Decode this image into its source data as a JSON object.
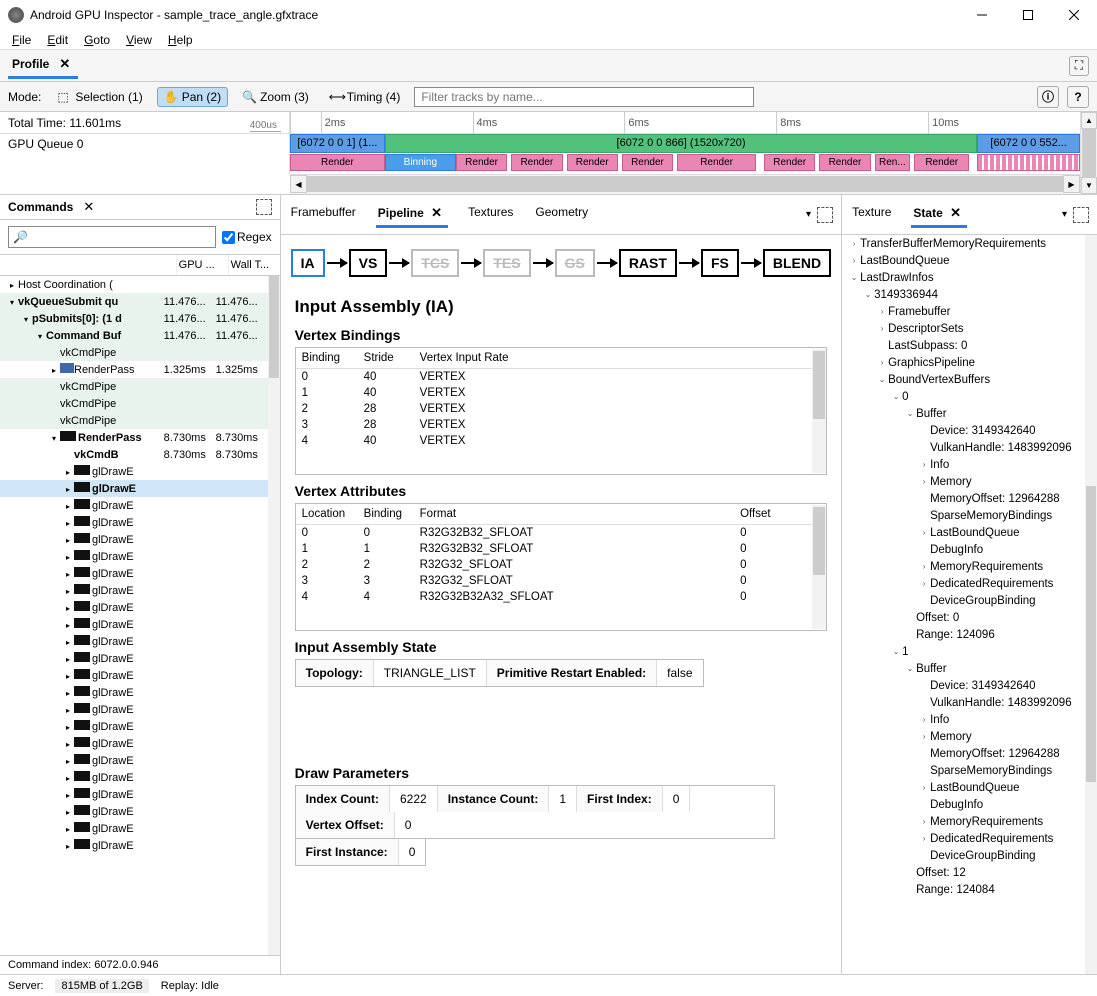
{
  "window": {
    "title": "Android GPU Inspector - sample_trace_angle.gfxtrace"
  },
  "menubar": {
    "file": "File",
    "edit": "Edit",
    "goto": "Goto",
    "view": "View",
    "help": "Help"
  },
  "profile_tab": "Profile",
  "toolbar": {
    "mode_label": "Mode:",
    "selection": "Selection (1)",
    "pan": "Pan (2)",
    "zoom": "Zoom (3)",
    "timing": "Timing (4)",
    "filter_placeholder": "Filter tracks by name...",
    "info_icon": "ⓘ",
    "help_icon": "?"
  },
  "timeline": {
    "total_label": "Total Time: 11.601ms",
    "zoom_label": "400us",
    "ticks": [
      "",
      "2ms",
      "4ms",
      "6ms",
      "8ms",
      "10ms"
    ],
    "queue_label": "GPU Queue 0",
    "seg_a": "[6072 0 0 1] (1...",
    "seg_b": "[6072 0 0 866] (1520x720)",
    "seg_c": "[6072 0 0 552...",
    "render": "Render",
    "binning": "Binning"
  },
  "commands": {
    "title": "Commands",
    "regex": "Regex",
    "cols": {
      "gpu": "GPU ...",
      "wall": "Wall T..."
    },
    "rows": [
      {
        "d": 0,
        "tw": ">",
        "name": "Host Coordination (",
        "g": "",
        "w": "",
        "style": ""
      },
      {
        "d": 0,
        "tw": "v",
        "name": "vkQueueSubmit qu",
        "g": "11.476...",
        "w": "11.476...",
        "bold": true,
        "hl": true
      },
      {
        "d": 1,
        "tw": "v",
        "name": "pSubmits[0]: (1 d",
        "g": "11.476...",
        "w": "11.476...",
        "hl": true,
        "bold": true
      },
      {
        "d": 2,
        "tw": "v",
        "name": "Command Buf",
        "g": "11.476...",
        "w": "11.476...",
        "hl": true,
        "bold": true
      },
      {
        "d": 3,
        "tw": "",
        "name": "vkCmdPipe",
        "g": "",
        "w": "",
        "hl": true
      },
      {
        "d": 3,
        "tw": ">",
        "name": "RenderPass",
        "g": "1.325ms",
        "w": "1.325ms",
        "icon": "rp"
      },
      {
        "d": 3,
        "tw": "",
        "name": "vkCmdPipe",
        "g": "",
        "w": "",
        "hl": true
      },
      {
        "d": 3,
        "tw": "",
        "name": "vkCmdPipe",
        "g": "",
        "w": "",
        "hl": true
      },
      {
        "d": 3,
        "tw": "",
        "name": "vkCmdPipe",
        "g": "",
        "w": "",
        "hl": true
      },
      {
        "d": 3,
        "tw": "v",
        "name": "RenderPass",
        "g": "8.730ms",
        "w": "8.730ms",
        "icon": "box",
        "bold": true
      },
      {
        "d": 4,
        "tw": "",
        "name": "vkCmdB",
        "g": "8.730ms",
        "w": "8.730ms",
        "bold": true
      },
      {
        "d": 4,
        "tw": ">",
        "name": "glDrawE",
        "g": "",
        "w": "",
        "icon": "box"
      },
      {
        "d": 4,
        "tw": ">",
        "name": "glDrawE",
        "g": "",
        "w": "",
        "icon": "box",
        "sel": true,
        "bold": true
      },
      {
        "d": 4,
        "tw": ">",
        "name": "glDrawE",
        "g": "",
        "w": "",
        "icon": "box"
      },
      {
        "d": 4,
        "tw": ">",
        "name": "glDrawE",
        "g": "",
        "w": "",
        "icon": "box"
      },
      {
        "d": 4,
        "tw": ">",
        "name": "glDrawE",
        "g": "",
        "w": "",
        "icon": "box"
      },
      {
        "d": 4,
        "tw": ">",
        "name": "glDrawE",
        "g": "",
        "w": "",
        "icon": "box"
      },
      {
        "d": 4,
        "tw": ">",
        "name": "glDrawE",
        "g": "",
        "w": "",
        "icon": "box"
      },
      {
        "d": 4,
        "tw": ">",
        "name": "glDrawE",
        "g": "",
        "w": "",
        "icon": "box"
      },
      {
        "d": 4,
        "tw": ">",
        "name": "glDrawE",
        "g": "",
        "w": "",
        "icon": "box"
      },
      {
        "d": 4,
        "tw": ">",
        "name": "glDrawE",
        "g": "",
        "w": "",
        "icon": "box"
      },
      {
        "d": 4,
        "tw": ">",
        "name": "glDrawE",
        "g": "",
        "w": "",
        "icon": "box"
      },
      {
        "d": 4,
        "tw": ">",
        "name": "glDrawE",
        "g": "",
        "w": "",
        "icon": "box"
      },
      {
        "d": 4,
        "tw": ">",
        "name": "glDrawE",
        "g": "",
        "w": "",
        "icon": "box"
      },
      {
        "d": 4,
        "tw": ">",
        "name": "glDrawE",
        "g": "",
        "w": "",
        "icon": "box"
      },
      {
        "d": 4,
        "tw": ">",
        "name": "glDrawE",
        "g": "",
        "w": "",
        "icon": "box"
      },
      {
        "d": 4,
        "tw": ">",
        "name": "glDrawE",
        "g": "",
        "w": "",
        "icon": "box"
      },
      {
        "d": 4,
        "tw": ">",
        "name": "glDrawE",
        "g": "",
        "w": "",
        "icon": "box"
      },
      {
        "d": 4,
        "tw": ">",
        "name": "glDrawE",
        "g": "",
        "w": "",
        "icon": "box"
      },
      {
        "d": 4,
        "tw": ">",
        "name": "glDrawE",
        "g": "",
        "w": "",
        "icon": "box"
      },
      {
        "d": 4,
        "tw": ">",
        "name": "glDrawE",
        "g": "",
        "w": "",
        "icon": "box"
      },
      {
        "d": 4,
        "tw": ">",
        "name": "glDrawE",
        "g": "",
        "w": "",
        "icon": "box"
      },
      {
        "d": 4,
        "tw": ">",
        "name": "glDrawE",
        "g": "",
        "w": "",
        "icon": "box"
      },
      {
        "d": 4,
        "tw": ">",
        "name": "glDrawE",
        "g": "",
        "w": "",
        "icon": "box"
      }
    ],
    "status": "Command index: 6072.0.0.946"
  },
  "mid_tabs": {
    "fb": "Framebuffer",
    "pipe": "Pipeline",
    "tex": "Textures",
    "geo": "Geometry"
  },
  "pipe_nodes": {
    "ia": "IA",
    "vs": "VS",
    "tcs": "TCS",
    "tes": "TES",
    "gs": "GS",
    "rast": "RAST",
    "fs": "FS",
    "blend": "BLEND"
  },
  "ia": {
    "title": "Input Assembly (IA)",
    "vb_title": "Vertex Bindings",
    "vb_head": {
      "b": "Binding",
      "s": "Stride",
      "r": "Vertex Input Rate"
    },
    "vb": [
      {
        "b": "0",
        "s": "40",
        "r": "VERTEX"
      },
      {
        "b": "1",
        "s": "40",
        "r": "VERTEX"
      },
      {
        "b": "2",
        "s": "28",
        "r": "VERTEX"
      },
      {
        "b": "3",
        "s": "28",
        "r": "VERTEX"
      },
      {
        "b": "4",
        "s": "40",
        "r": "VERTEX"
      }
    ],
    "va_title": "Vertex Attributes",
    "va_head": {
      "l": "Location",
      "b": "Binding",
      "f": "Format",
      "o": "Offset"
    },
    "va": [
      {
        "l": "0",
        "b": "0",
        "f": "R32G32B32_SFLOAT",
        "o": "0"
      },
      {
        "l": "1",
        "b": "1",
        "f": "R32G32B32_SFLOAT",
        "o": "0"
      },
      {
        "l": "2",
        "b": "2",
        "f": "R32G32_SFLOAT",
        "o": "0"
      },
      {
        "l": "3",
        "b": "3",
        "f": "R32G32_SFLOAT",
        "o": "0"
      },
      {
        "l": "4",
        "b": "4",
        "f": "R32G32B32A32_SFLOAT",
        "o": "0"
      }
    ],
    "ias_title": "Input Assembly State",
    "topology_k": "Topology:",
    "topology_v": "TRIANGLE_LIST",
    "pre_k": "Primitive Restart Enabled:",
    "pre_v": "false",
    "dp_title": "Draw Parameters",
    "dp": {
      "idx_k": "Index Count:",
      "idx_v": "6222",
      "inst_k": "Instance Count:",
      "inst_v": "1",
      "fi_k": "First Index:",
      "fi_v": "0",
      "vo_k": "Vertex Offset:",
      "vo_v": "0",
      "fin_k": "First Instance:",
      "fin_v": "0"
    }
  },
  "state": {
    "tabs": {
      "tex": "Texture",
      "state": "State"
    },
    "rows": [
      {
        "d": 0,
        "tw": ">",
        "t": "TransferBufferMemoryRequirements"
      },
      {
        "d": 0,
        "tw": ">",
        "t": "LastBoundQueue"
      },
      {
        "d": 0,
        "tw": "v",
        "t": "LastDrawInfos"
      },
      {
        "d": 1,
        "tw": "v",
        "t": "3149336944"
      },
      {
        "d": 2,
        "tw": ">",
        "t": "Framebuffer"
      },
      {
        "d": 2,
        "tw": ">",
        "t": "DescriptorSets"
      },
      {
        "d": 2,
        "tw": "",
        "t": "LastSubpass: 0"
      },
      {
        "d": 2,
        "tw": ">",
        "t": "GraphicsPipeline"
      },
      {
        "d": 2,
        "tw": "v",
        "t": "BoundVertexBuffers"
      },
      {
        "d": 3,
        "tw": "v",
        "t": "0"
      },
      {
        "d": 4,
        "tw": "v",
        "t": "Buffer"
      },
      {
        "d": 5,
        "tw": "",
        "t": "Device: 3149342640"
      },
      {
        "d": 5,
        "tw": "",
        "t": "VulkanHandle: 1483992096"
      },
      {
        "d": 5,
        "tw": ">",
        "t": "Info"
      },
      {
        "d": 5,
        "tw": ">",
        "t": "Memory"
      },
      {
        "d": 5,
        "tw": "",
        "t": "MemoryOffset: 12964288"
      },
      {
        "d": 5,
        "tw": "",
        "t": "SparseMemoryBindings"
      },
      {
        "d": 5,
        "tw": ">",
        "t": "LastBoundQueue"
      },
      {
        "d": 5,
        "tw": "",
        "t": "DebugInfo"
      },
      {
        "d": 5,
        "tw": ">",
        "t": "MemoryRequirements"
      },
      {
        "d": 5,
        "tw": ">",
        "t": "DedicatedRequirements"
      },
      {
        "d": 5,
        "tw": "",
        "t": "DeviceGroupBinding"
      },
      {
        "d": 4,
        "tw": "",
        "t": "Offset: 0"
      },
      {
        "d": 4,
        "tw": "",
        "t": "Range: 124096"
      },
      {
        "d": 3,
        "tw": "v",
        "t": "1"
      },
      {
        "d": 4,
        "tw": "v",
        "t": "Buffer"
      },
      {
        "d": 5,
        "tw": "",
        "t": "Device: 3149342640"
      },
      {
        "d": 5,
        "tw": "",
        "t": "VulkanHandle: 1483992096"
      },
      {
        "d": 5,
        "tw": ">",
        "t": "Info"
      },
      {
        "d": 5,
        "tw": ">",
        "t": "Memory"
      },
      {
        "d": 5,
        "tw": "",
        "t": "MemoryOffset: 12964288"
      },
      {
        "d": 5,
        "tw": "",
        "t": "SparseMemoryBindings"
      },
      {
        "d": 5,
        "tw": ">",
        "t": "LastBoundQueue"
      },
      {
        "d": 5,
        "tw": "",
        "t": "DebugInfo"
      },
      {
        "d": 5,
        "tw": ">",
        "t": "MemoryRequirements"
      },
      {
        "d": 5,
        "tw": ">",
        "t": "DedicatedRequirements"
      },
      {
        "d": 5,
        "tw": "",
        "t": "DeviceGroupBinding"
      },
      {
        "d": 4,
        "tw": "",
        "t": "Offset: 12"
      },
      {
        "d": 4,
        "tw": "",
        "t": "Range: 124084"
      }
    ]
  },
  "statusbar": {
    "server": "Server:",
    "memory": "815MB of 1.2GB",
    "replay": "Replay: Idle"
  }
}
